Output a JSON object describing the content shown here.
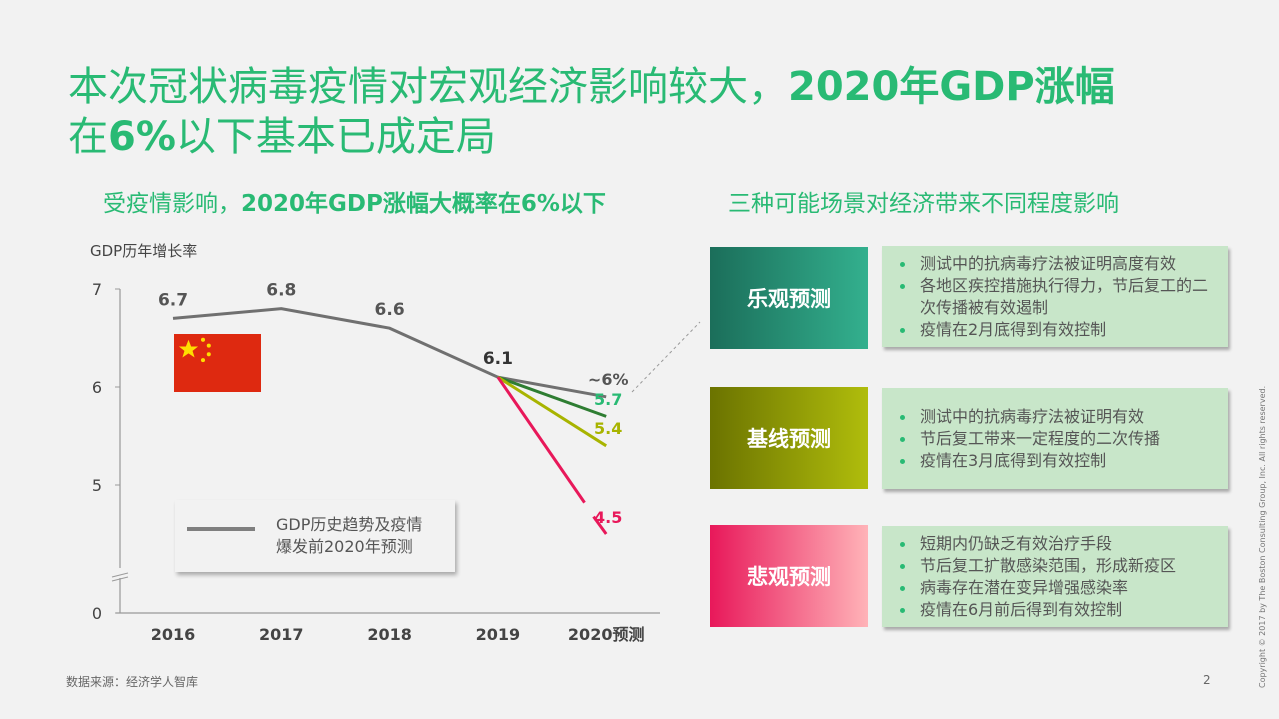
{
  "title": {
    "part1": "本次冠状病毒疫情对宏观经济影响较大，",
    "part2": "2020年GDP涨幅",
    "part3": "在",
    "part4": "6%",
    "part5": "以下基本已成定局"
  },
  "left_subtitle": {
    "a": "受疫情影响，",
    "b": "2020年GDP涨幅大概率在6%以下"
  },
  "right_subtitle": "三种可能场景对经济带来不同程度影响",
  "chart_data": {
    "type": "line",
    "ylabel": "GDP历年增长率",
    "categories": [
      "2016",
      "2017",
      "2018",
      "2019",
      "2020预测"
    ],
    "yticks": [
      "7",
      "6",
      "5",
      "0"
    ],
    "ylim": [
      0,
      7
    ],
    "axis_break": true,
    "series": [
      {
        "name": "GDP历史趋势及疫情爆发前2020年预测",
        "color": "#707070",
        "values": [
          6.7,
          6.8,
          6.6,
          6.1,
          5.9
        ],
        "labels": [
          "6.7",
          "6.8",
          "6.6",
          "6.1",
          "~6%"
        ]
      },
      {
        "color": "#2e7d32",
        "values": [
          null,
          null,
          null,
          6.1,
          5.7
        ],
        "labels": [
          null,
          null,
          null,
          null,
          "5.7"
        ],
        "label_color": "#29ba74"
      },
      {
        "color": "#a8b400",
        "values": [
          null,
          null,
          null,
          6.1,
          5.4
        ],
        "labels": [
          null,
          null,
          null,
          null,
          "5.4"
        ],
        "label_color": "#a8b400"
      },
      {
        "color": "#e8185a",
        "values": [
          null,
          null,
          null,
          6.1,
          4.5
        ],
        "labels": [
          null,
          null,
          null,
          null,
          "4.5"
        ],
        "label_color": "#e8185a"
      }
    ],
    "legend": {
      "line1": "GDP历史趋势及疫情",
      "line2": "爆发前2020年预测",
      "placement": "bottom-left"
    }
  },
  "flag": "china-flag",
  "scenarios": [
    {
      "name": "乐观预测",
      "colors": [
        "#1b6e5a",
        "#33b08e"
      ],
      "points": [
        "测试中的抗病毒疗法被证明高度有效",
        "各地区疾控措施执行得力，节后复工的二次传播被有效遏制",
        "疫情在2月底得到有效控制"
      ]
    },
    {
      "name": "基线预测",
      "colors": [
        "#6b7300",
        "#b0bd0c"
      ],
      "points": [
        "测试中的抗病毒疗法被证明有效",
        "节后复工带来一定程度的二次传播",
        "疫情在3月底得到有效控制"
      ]
    },
    {
      "name": "悲观预测",
      "colors": [
        "#e8185a",
        "#ffb3b8"
      ],
      "points": [
        "短期内仍缺乏有效治疗手段",
        "节后复工扩散感染范围，形成新疫区",
        "病毒存在潜在变异增强感染率",
        "疫情在6月前后得到有效控制"
      ]
    }
  ],
  "footer": {
    "source": "数据来源：经济学人智库",
    "page": "2",
    "copyright": "Copyright © 2017 by The Boston Consulting Group, Inc. All rights reserved."
  }
}
